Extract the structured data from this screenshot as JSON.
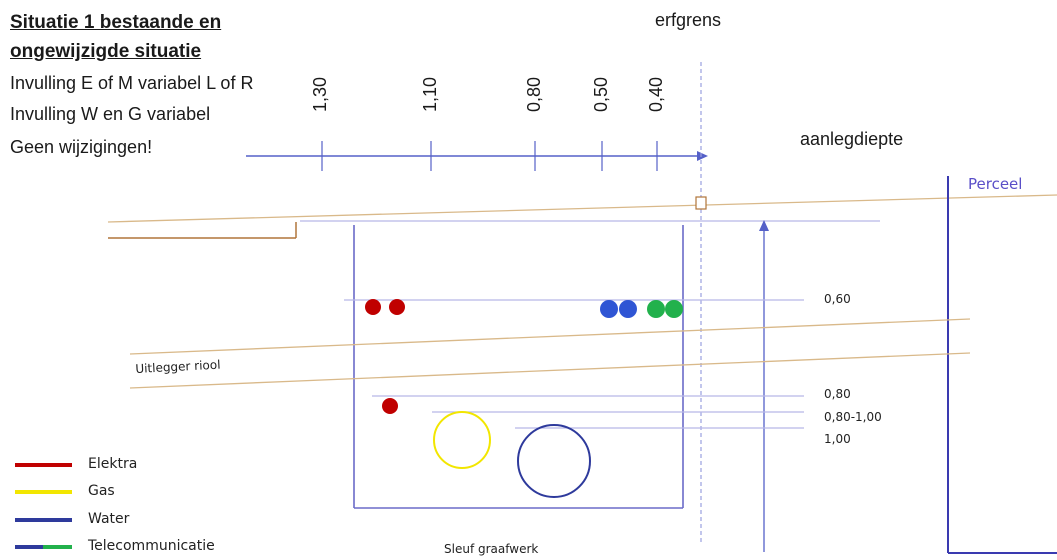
{
  "title": {
    "line1": "Situatie 1 bestaande en",
    "line2": "ongewijzigde situatie"
  },
  "info": [
    "Invulling E of M variabel L of R",
    "Invulling W en G variabel",
    "Geen wijzigingen!"
  ],
  "top_axis": {
    "label_erfgrens": "erfgrens",
    "label_aanlegdiepte": "aanlegdiepte",
    "ticks": [
      "1,30",
      "1,10",
      "0,80",
      "0,50",
      "0,40"
    ]
  },
  "perceel_label": "Perceel",
  "depth_labels": [
    "0,60",
    "0,80",
    "0,80-1,00",
    "1,00"
  ],
  "riool_label": "Uitlegger riool",
  "sleuf_label": "Sleuf graafwerk",
  "legend": [
    {
      "label": "Elektra",
      "color": "#c00000"
    },
    {
      "label": "Gas",
      "color": "#f2e600"
    },
    {
      "label": "Water",
      "color": "#2e3a9c"
    },
    {
      "label": "Telecommunicatie",
      "color": "#2e3a9c",
      "color2": "#22b14c"
    }
  ],
  "colors": {
    "elektra": "#c00000",
    "gas": "#f2e600",
    "water": "#2e3a9c",
    "telecom_blue": "#2f55d4",
    "telecom_green": "#22b14c",
    "axis": "#5560c8",
    "trench": "#6b6bc8",
    "ground": "#d9b98a"
  }
}
